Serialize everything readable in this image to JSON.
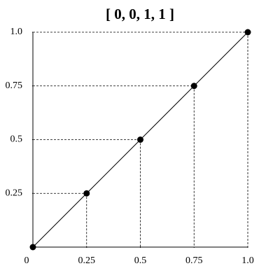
{
  "chart_data": {
    "type": "line",
    "title": "[ 0, 0, 1, 1 ]",
    "x": [
      0,
      0.25,
      0.5,
      0.75,
      1
    ],
    "values": [
      0,
      0.25,
      0.5,
      0.75,
      1
    ],
    "color": "#000000",
    "xlim": [
      0,
      1
    ],
    "ylim": [
      0,
      1
    ],
    "xticks": [
      0,
      0.25,
      0.5,
      0.75,
      {
        "value": 1,
        "label": "1.0"
      }
    ],
    "yticks": [
      0.25,
      0.5,
      0.75,
      {
        "value": 1,
        "label": "1.0"
      }
    ],
    "drop_lines": true
  }
}
